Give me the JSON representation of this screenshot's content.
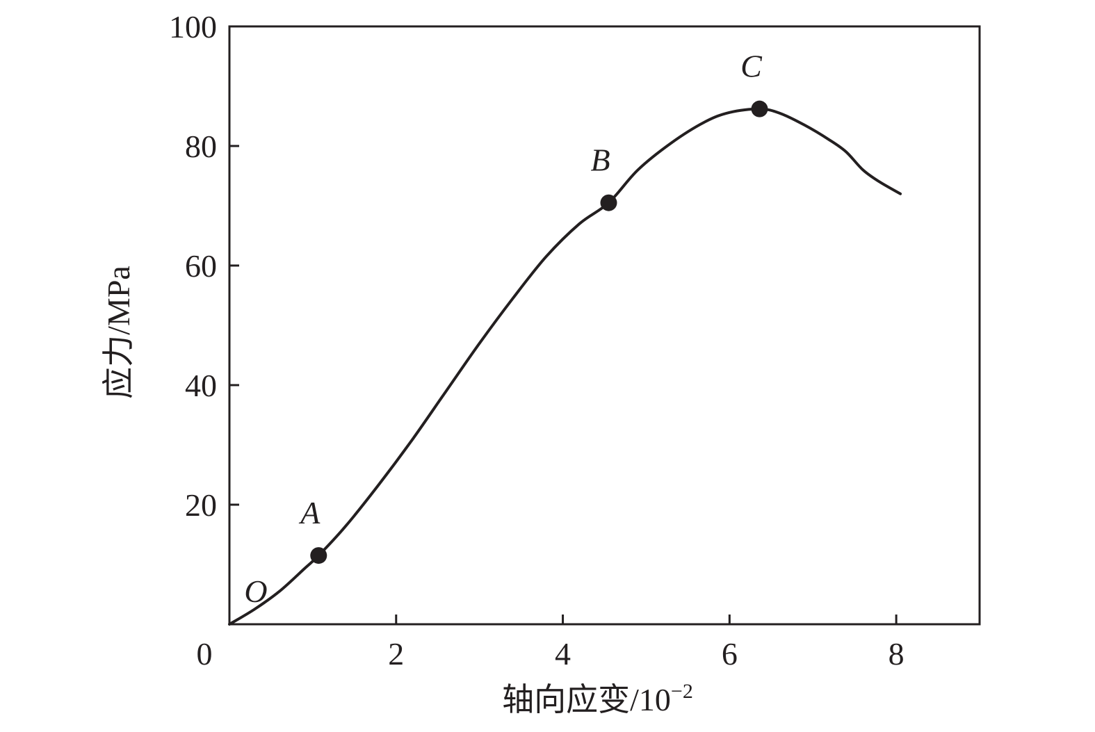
{
  "chart_data": {
    "type": "line",
    "xlabel": "轴向应变/10",
    "xlabel_exponent": "−2",
    "ylabel": "应力/MPa",
    "xlim": [
      0,
      9
    ],
    "ylim": [
      0,
      100
    ],
    "x_ticks": [
      0,
      2,
      4,
      6,
      8
    ],
    "x_tick_labels": [
      "0",
      "2",
      "4",
      "6",
      "8"
    ],
    "y_ticks": [
      20,
      40,
      60,
      80,
      100
    ],
    "y_tick_labels": [
      "20",
      "40",
      "60",
      "80",
      "100"
    ],
    "grid": false,
    "series": [
      {
        "x": [
          0,
          0.3,
          0.6,
          0.9,
          1.07,
          1.4,
          1.8,
          2.2,
          2.6,
          3.0,
          3.4,
          3.8,
          4.2,
          4.55,
          4.9,
          5.3,
          5.7,
          6.0,
          6.36,
          6.6,
          6.9,
          7.2,
          7.4,
          7.6,
          7.8,
          8.05
        ],
        "y": [
          0,
          2.5,
          5.5,
          9.3,
          11.5,
          16.5,
          23.5,
          31.0,
          39.0,
          47.0,
          54.5,
          61.5,
          67.0,
          70.5,
          76.0,
          80.5,
          84.0,
          85.6,
          86.2,
          85.5,
          83.5,
          81.0,
          79.0,
          76.0,
          74.0,
          72.0
        ]
      }
    ],
    "annotations": [
      {
        "label": "O",
        "x": 0,
        "y": 0,
        "marker": false
      },
      {
        "label": "A",
        "x": 1.07,
        "y": 11.5,
        "marker": true
      },
      {
        "label": "B",
        "x": 4.55,
        "y": 70.5,
        "marker": true
      },
      {
        "label": "C",
        "x": 6.36,
        "y": 86.2,
        "marker": true
      }
    ]
  }
}
